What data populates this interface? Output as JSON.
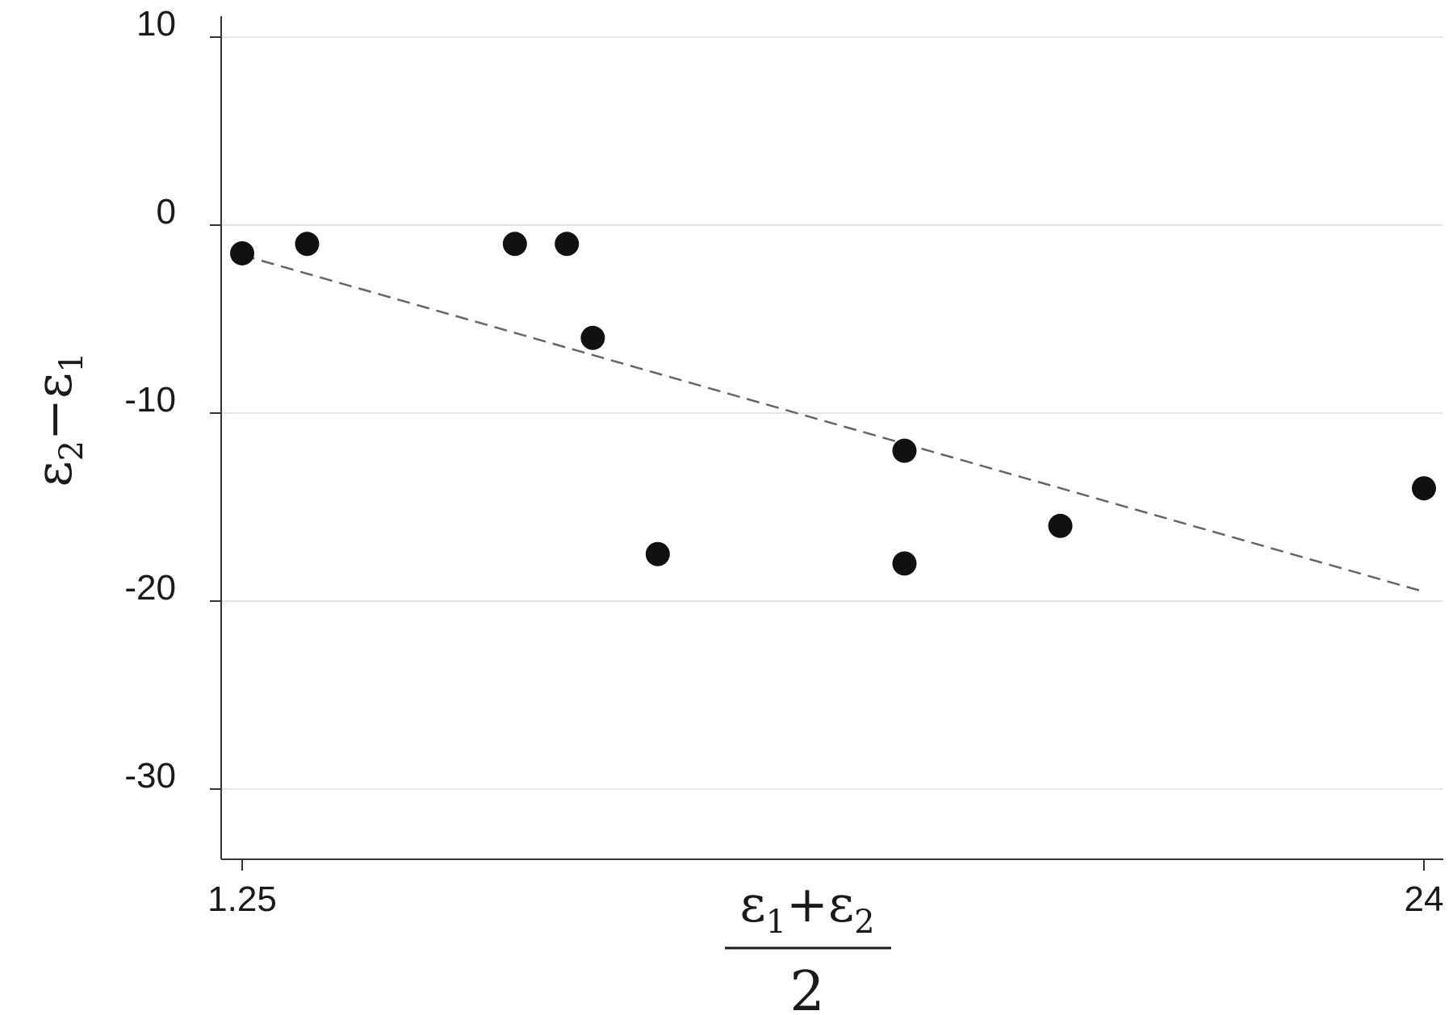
{
  "chart_data": {
    "type": "scatter",
    "title": "",
    "xlabel": {
      "numerator_parts": [
        "ε",
        "1",
        "+ε",
        "2"
      ],
      "denominator": "2"
    },
    "ylabel": {
      "parts": [
        "ε",
        "2",
        "−ε",
        "1"
      ]
    },
    "xlim": [
      1.25,
      24
    ],
    "ylim": [
      -33.5,
      11
    ],
    "x_ticks": [
      1.25,
      24
    ],
    "x_tick_labels": [
      "1.25",
      "24"
    ],
    "y_ticks": [
      10,
      0,
      -10,
      -20,
      -30
    ],
    "y_tick_labels": [
      "10",
      "0",
      "-10",
      "-20",
      "-30"
    ],
    "grid": "horizontal",
    "legend": "none",
    "series": [
      {
        "marker": "circle",
        "color": "#111111",
        "points": [
          {
            "x": 1.25,
            "y": -1.5
          },
          {
            "x": 2.5,
            "y": -1
          },
          {
            "x": 6.5,
            "y": -1
          },
          {
            "x": 7.5,
            "y": -1
          },
          {
            "x": 8.0,
            "y": -6
          },
          {
            "x": 9.25,
            "y": -17.5
          },
          {
            "x": 14.0,
            "y": -12
          },
          {
            "x": 14.0,
            "y": -18
          },
          {
            "x": 17.0,
            "y": -16
          },
          {
            "x": 24.0,
            "y": -14
          }
        ]
      }
    ],
    "fit_line": {
      "style": "dashed",
      "color": "#666666",
      "x": [
        1.25,
        24
      ],
      "y": [
        -1.6,
        -19.5
      ]
    }
  }
}
